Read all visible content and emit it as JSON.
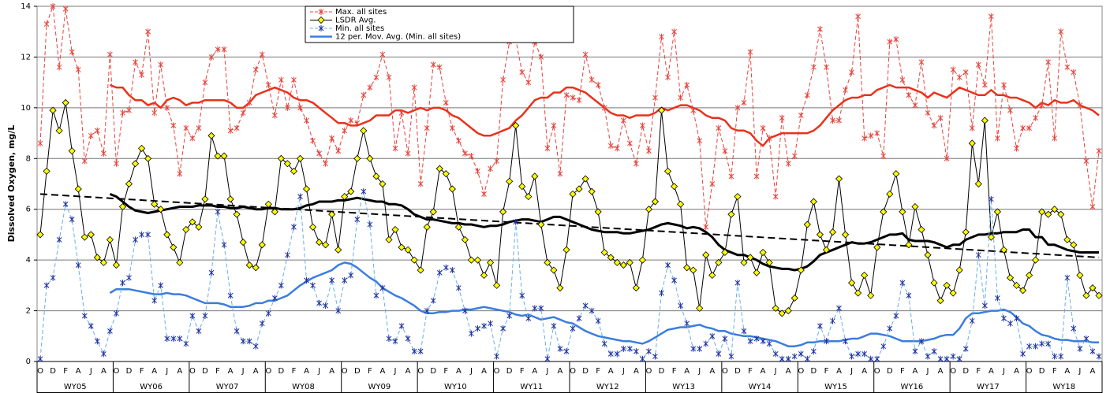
{
  "chart_data": {
    "type": "line",
    "ylabel": "Dissolved Oxygen, mg/L",
    "ylim": [
      0,
      14
    ],
    "yticks": [
      0,
      2,
      4,
      6,
      8,
      10,
      12,
      14
    ],
    "grid": true,
    "legend": "top-center",
    "categories": [
      "O",
      null,
      "D",
      null,
      "F",
      null,
      "A",
      null,
      "J",
      null,
      "A",
      null,
      "O",
      null,
      "D",
      null,
      "F",
      null,
      "A",
      null,
      "J",
      null,
      "A",
      null,
      "O",
      null,
      "D",
      null,
      "F",
      null,
      "A",
      null,
      "J",
      null,
      "A",
      null,
      "O",
      null,
      "D",
      null,
      "F",
      null,
      "A",
      null,
      "J",
      null,
      "A",
      null,
      "O",
      null,
      "D",
      null,
      "F",
      null,
      "A",
      null,
      "J",
      null,
      "A",
      null,
      "O",
      null,
      "D",
      null,
      "F",
      null,
      "A",
      null,
      "J",
      null,
      "A",
      null,
      "O",
      null,
      "D",
      null,
      "F",
      null,
      "A",
      null,
      "J",
      null,
      "A",
      null,
      "O",
      null,
      "D",
      null,
      "F",
      null,
      "A",
      null,
      "J",
      null,
      "A",
      null,
      "O",
      null,
      "D",
      null,
      "F",
      null,
      "A",
      null,
      "J",
      null,
      "A",
      null,
      "O",
      null,
      "D",
      null,
      "F",
      null,
      "A",
      null,
      "J",
      null,
      "A",
      null,
      "O",
      null,
      "D",
      null,
      "F",
      null,
      "A",
      null,
      "J",
      null,
      "A",
      null,
      "O",
      null,
      "D",
      null,
      "F",
      null,
      "A",
      null,
      "J",
      null,
      "A",
      null,
      "O",
      null,
      "D",
      null,
      "F",
      null,
      "A",
      null,
      "J",
      null,
      "A",
      null,
      "O",
      null,
      "D",
      null,
      "F",
      null,
      "A",
      null,
      "J",
      null,
      "A",
      null
    ],
    "year_groups": [
      "WY05",
      "WY06",
      "WY07",
      "WY08",
      "WY09",
      "WY10",
      "WY11",
      "WY12",
      "WY13",
      "WY14",
      "WY15",
      "WY16",
      "WY17",
      "WY18"
    ],
    "series": [
      {
        "name": "Max. all sites",
        "color": "#e8413a",
        "dash": true,
        "marker": "star",
        "marker_color": "#e8413a",
        "width": 1,
        "values": [
          8.6,
          13.3,
          14.0,
          11.6,
          13.9,
          12.2,
          11.5,
          7.9,
          8.9,
          9.1,
          8.2,
          12.1,
          7.8,
          9.8,
          9.9,
          11.8,
          11.3,
          13.0,
          9.8,
          11.7,
          10.0,
          9.3,
          7.4,
          9.2,
          8.8,
          9.2,
          11.0,
          12.0,
          12.3,
          12.3,
          9.1,
          9.2,
          9.8,
          10.2,
          11.5,
          12.1,
          10.9,
          9.7,
          11.1,
          10.0,
          11.1,
          10.0,
          9.5,
          8.7,
          8.2,
          7.8,
          8.8,
          8.3,
          9.1,
          9.5,
          9.4,
          10.5,
          10.8,
          11.2,
          12.1,
          11.2,
          8.4,
          9.8,
          8.2,
          10.8,
          7.0,
          9.2,
          11.7,
          11.6,
          10.2,
          9.2,
          8.7,
          8.2,
          8.1,
          7.5,
          6.6,
          7.6,
          7.9,
          11.1,
          12.6,
          12.7,
          11.4,
          11.0,
          12.6,
          12.0,
          8.4,
          9.3,
          7.4,
          10.5,
          10.4,
          10.3,
          12.1,
          11.1,
          10.9,
          10.0,
          8.5,
          8.4,
          9.5,
          8.6,
          7.8,
          9.3,
          8.3,
          10.4,
          12.8,
          11.2,
          13.0,
          10.4,
          10.9,
          9.9,
          8.7,
          5.3,
          7.0,
          9.2,
          8.3,
          7.3,
          10.0,
          10.2,
          12.2,
          7.3,
          9.2,
          8.8,
          6.5,
          9.6,
          7.8,
          8.1,
          9.7,
          10.5,
          11.6,
          13.1,
          11.6,
          9.5,
          9.5,
          10.7,
          11.4,
          13.6,
          8.8,
          8.9,
          9.0,
          8.1,
          12.6,
          12.7,
          11.1,
          10.5,
          10.1,
          11.8,
          9.8,
          9.3,
          9.6,
          8.0,
          11.5,
          11.2,
          11.4,
          9.2,
          11.7,
          10.9,
          13.6,
          8.8,
          10.9,
          9.9,
          8.4,
          9.2,
          9.2,
          9.6,
          10.1,
          11.8,
          8.8,
          13.0,
          11.6,
          11.4,
          10.1,
          7.9,
          6.1,
          8.3
        ]
      },
      {
        "name": "LSDR Avg.",
        "color": "#000000",
        "dash": false,
        "marker": "diamond",
        "marker_color": "#ffff00",
        "width": 1,
        "values": [
          5.0,
          7.5,
          9.9,
          9.1,
          10.2,
          8.3,
          6.8,
          4.9,
          5.0,
          4.1,
          3.9,
          4.8,
          3.8,
          6.1,
          7.0,
          7.8,
          8.4,
          8.0,
          6.2,
          6.0,
          5.0,
          4.5,
          3.9,
          5.2,
          5.5,
          5.3,
          6.4,
          8.9,
          8.1,
          8.1,
          6.4,
          5.8,
          4.7,
          3.8,
          3.7,
          4.6,
          6.2,
          5.9,
          8.0,
          7.8,
          7.5,
          8.0,
          6.8,
          5.3,
          4.7,
          4.6,
          5.8,
          4.4,
          6.5,
          6.7,
          8.0,
          9.1,
          8.0,
          7.3,
          7.0,
          4.8,
          5.2,
          4.5,
          4.4,
          4.0,
          3.6,
          5.3,
          5.9,
          7.6,
          7.4,
          6.8,
          5.3,
          4.8,
          4.0,
          4.0,
          3.4,
          3.9,
          3.0,
          5.9,
          7.1,
          9.3,
          6.9,
          6.5,
          7.3,
          5.4,
          3.9,
          3.6,
          2.9,
          4.4,
          6.6,
          6.8,
          7.2,
          6.7,
          5.9,
          4.3,
          4.1,
          3.9,
          3.8,
          3.9,
          2.9,
          4.0,
          6.0,
          6.3,
          9.9,
          7.5,
          6.9,
          6.2,
          3.7,
          3.6,
          2.1,
          4.2,
          3.4,
          3.9,
          4.3,
          5.8,
          6.5,
          3.9,
          4.1,
          3.5,
          4.3,
          3.9,
          2.1,
          1.9,
          2.0,
          2.5,
          3.6,
          5.4,
          6.3,
          5.0,
          4.4,
          5.1,
          7.2,
          5.0,
          3.1,
          2.7,
          3.4,
          2.6,
          4.5,
          5.9,
          6.6,
          7.4,
          5.9,
          4.6,
          6.1,
          5.2,
          4.2,
          3.1,
          2.4,
          3.0,
          2.7,
          3.6,
          5.1,
          8.6,
          7.0,
          9.5,
          4.9,
          5.9,
          4.4,
          3.3,
          3.0,
          2.8,
          3.4,
          4.0,
          5.9,
          5.8,
          6.0,
          5.8,
          4.8,
          4.6,
          3.4,
          2.6,
          2.9,
          2.6
        ]
      },
      {
        "name": "Min. all sites",
        "color": "#6aaee8",
        "dash": true,
        "marker": "star",
        "marker_color": "#1f2f9f",
        "width": 1,
        "values": [
          0.1,
          3.0,
          3.3,
          4.8,
          6.2,
          5.6,
          3.8,
          1.8,
          1.4,
          0.8,
          0.3,
          1.2,
          1.9,
          3.1,
          3.3,
          4.8,
          5.0,
          5.0,
          2.4,
          3.0,
          0.9,
          0.9,
          0.9,
          0.7,
          1.8,
          1.2,
          1.8,
          3.5,
          5.9,
          4.6,
          2.6,
          1.2,
          0.8,
          0.8,
          0.6,
          1.5,
          1.9,
          2.5,
          3.0,
          4.2,
          5.3,
          6.5,
          3.2,
          3.0,
          2.3,
          2.2,
          3.2,
          2.0,
          3.2,
          3.4,
          5.6,
          6.7,
          5.4,
          2.6,
          2.9,
          0.9,
          0.8,
          1.4,
          0.9,
          0.4,
          0.4,
          2.0,
          2.4,
          3.5,
          3.7,
          3.6,
          2.9,
          2.0,
          1.1,
          1.3,
          1.4,
          1.5,
          0.2,
          1.3,
          1.8,
          5.5,
          2.6,
          1.7,
          2.1,
          2.1,
          0.1,
          1.4,
          0.5,
          0.4,
          1.3,
          1.7,
          2.2,
          2.0,
          1.6,
          0.7,
          0.3,
          0.3,
          0.5,
          0.5,
          0.4,
          0.1,
          0.4,
          0.2,
          2.7,
          3.8,
          3.2,
          2.2,
          1.5,
          0.5,
          0.5,
          0.7,
          1.0,
          0.3,
          0.9,
          0.2,
          3.1,
          1.2,
          0.8,
          0.9,
          0.8,
          0.7,
          0.3,
          0.1,
          0.1,
          0.2,
          0.3,
          0.1,
          0.4,
          1.4,
          0.8,
          1.6,
          2.1,
          0.8,
          0.2,
          0.3,
          0.3,
          0.1,
          0.1,
          0.6,
          1.3,
          1.8,
          3.1,
          2.6,
          0.4,
          0.8,
          0.2,
          0.4,
          0.1,
          0.1,
          0.2,
          0.1,
          0.5,
          1.6,
          4.2,
          2.2,
          6.4,
          2.5,
          1.7,
          1.5,
          1.7,
          0.3,
          0.6,
          0.6,
          0.7,
          0.7,
          0.2,
          0.2,
          3.3,
          1.3,
          0.5,
          0.9,
          0.4,
          0.2
        ]
      },
      {
        "name": "12 per. Mov. Avg. (Min. all sites)",
        "color": "#3a7de0",
        "dash": false,
        "width": 2.5,
        "values": [
          null,
          null,
          null,
          null,
          null,
          null,
          null,
          null,
          null,
          null,
          null,
          2.7,
          2.85,
          2.85,
          2.85,
          2.8,
          2.75,
          2.7,
          2.65,
          2.65,
          2.7,
          2.65,
          2.65,
          2.6,
          2.5,
          2.4,
          2.3,
          2.3,
          2.3,
          2.25,
          2.15,
          2.15,
          2.15,
          2.2,
          2.3,
          2.3,
          2.4,
          2.4,
          2.5,
          2.6,
          2.8,
          3.0,
          3.15,
          3.3,
          3.4,
          3.5,
          3.6,
          3.8,
          3.9,
          3.85,
          3.7,
          3.5,
          3.3,
          3.15,
          2.9,
          2.75,
          2.6,
          2.5,
          2.35,
          2.2,
          2.0,
          1.9,
          1.9,
          1.95,
          1.95,
          2.0,
          2.0,
          2.05,
          2.05,
          2.1,
          2.15,
          2.1,
          2.05,
          2.0,
          1.95,
          1.85,
          1.8,
          1.85,
          1.75,
          1.65,
          1.7,
          1.75,
          1.65,
          1.55,
          1.5,
          1.35,
          1.2,
          1.1,
          1.0,
          0.95,
          0.9,
          0.85,
          0.8,
          0.8,
          0.75,
          0.7,
          0.8,
          0.95,
          1.1,
          1.25,
          1.3,
          1.35,
          1.35,
          1.4,
          1.45,
          1.35,
          1.3,
          1.2,
          1.2,
          1.1,
          1.05,
          1.0,
          1.0,
          0.95,
          0.9,
          0.85,
          0.8,
          0.7,
          0.6,
          0.6,
          0.65,
          0.75,
          0.75,
          0.8,
          0.8,
          0.8,
          0.8,
          0.85,
          0.9,
          0.9,
          1.0,
          1.1,
          1.1,
          1.05,
          1.0,
          0.9,
          0.8,
          0.8,
          0.8,
          0.8,
          0.85,
          0.9,
          1.0,
          1.05,
          1.05,
          1.3,
          1.7,
          1.9,
          1.9,
          1.95,
          2.0,
          2.0,
          2.05,
          1.95,
          1.75,
          1.5,
          1.4,
          1.2,
          1.05,
          1.0,
          0.9,
          0.85,
          0.85,
          0.8,
          0.8,
          0.8,
          0.75,
          0.75
        ]
      },
      {
        "color": "#e8321a",
        "dash": false,
        "width": 2.5,
        "values": [
          null,
          null,
          null,
          null,
          null,
          null,
          null,
          null,
          null,
          null,
          null,
          10.9,
          10.8,
          10.8,
          10.5,
          10.3,
          10.3,
          10.1,
          10.2,
          10.0,
          10.3,
          10.4,
          10.3,
          10.1,
          10.2,
          10.2,
          10.3,
          10.3,
          10.3,
          10.3,
          10.2,
          10.0,
          10.0,
          10.2,
          10.5,
          10.6,
          10.7,
          10.8,
          10.7,
          10.6,
          10.4,
          10.3,
          10.3,
          10.2,
          10.0,
          9.8,
          9.6,
          9.4,
          9.4,
          9.3,
          9.3,
          9.4,
          9.5,
          9.7,
          9.7,
          9.7,
          9.9,
          9.9,
          9.8,
          9.9,
          10.0,
          9.9,
          10.0,
          10.0,
          9.9,
          9.7,
          9.6,
          9.4,
          9.2,
          9.0,
          8.9,
          8.9,
          9.0,
          9.1,
          9.2,
          9.5,
          9.7,
          10.0,
          10.3,
          10.4,
          10.4,
          10.6,
          10.6,
          10.8,
          10.8,
          10.7,
          10.6,
          10.4,
          10.2,
          10.0,
          9.8,
          9.7,
          9.7,
          9.6,
          9.7,
          9.7,
          9.7,
          9.8,
          10.0,
          9.9,
          10.0,
          10.1,
          10.1,
          10.0,
          9.9,
          9.7,
          9.6,
          9.6,
          9.5,
          9.2,
          9.1,
          9.1,
          9.0,
          8.7,
          8.5,
          8.8,
          8.9,
          9.0,
          9.0,
          9.0,
          9.0,
          9.0,
          9.1,
          9.3,
          9.6,
          9.9,
          10.1,
          10.3,
          10.4,
          10.4,
          10.5,
          10.5,
          10.7,
          10.8,
          10.9,
          10.8,
          10.8,
          10.8,
          10.7,
          10.6,
          10.4,
          10.6,
          10.5,
          10.4,
          10.6,
          10.8,
          10.7,
          10.6,
          10.5,
          10.5,
          10.7,
          10.5,
          10.5,
          10.4,
          10.4,
          10.3,
          10.2,
          10.0,
          10.2,
          10.1,
          10.3,
          10.2,
          10.2,
          10.3,
          10.1,
          10.0,
          9.9,
          9.7
        ]
      },
      {
        "color": "#000000",
        "dash": false,
        "width": 3,
        "values": [
          null,
          null,
          null,
          null,
          null,
          null,
          null,
          null,
          null,
          null,
          null,
          6.6,
          6.5,
          6.3,
          6.1,
          5.95,
          5.9,
          5.85,
          5.9,
          5.95,
          6.0,
          6.05,
          6.1,
          6.1,
          6.1,
          6.15,
          6.15,
          6.15,
          6.1,
          6.1,
          6.05,
          6.05,
          6.1,
          6.05,
          6.0,
          6.0,
          6.05,
          6.05,
          6.0,
          6.0,
          6.0,
          6.05,
          6.15,
          6.2,
          6.3,
          6.3,
          6.3,
          6.35,
          6.35,
          6.4,
          6.45,
          6.4,
          6.35,
          6.3,
          6.3,
          6.2,
          6.2,
          6.15,
          6.0,
          5.8,
          5.7,
          5.6,
          5.6,
          5.55,
          5.5,
          5.45,
          5.45,
          5.4,
          5.4,
          5.35,
          5.3,
          5.35,
          5.35,
          5.4,
          5.5,
          5.55,
          5.6,
          5.6,
          5.55,
          5.5,
          5.6,
          5.7,
          5.7,
          5.6,
          5.5,
          5.4,
          5.3,
          5.2,
          5.15,
          5.1,
          5.1,
          5.1,
          5.05,
          5.05,
          5.1,
          5.15,
          5.2,
          5.3,
          5.4,
          5.45,
          5.4,
          5.35,
          5.25,
          5.3,
          5.25,
          5.1,
          4.9,
          4.6,
          4.4,
          4.3,
          4.2,
          4.2,
          4.1,
          4.0,
          3.85,
          3.75,
          3.7,
          3.65,
          3.65,
          3.6,
          3.65,
          3.75,
          3.95,
          4.2,
          4.3,
          4.4,
          4.5,
          4.6,
          4.7,
          4.65,
          4.65,
          4.7,
          4.8,
          4.9,
          5.0,
          5.0,
          5.05,
          4.8,
          4.75,
          4.75,
          4.75,
          4.7,
          4.6,
          4.5,
          4.6,
          4.6,
          4.8,
          4.9,
          5.0,
          5.0,
          5.05,
          5.05,
          5.1,
          5.1,
          5.1,
          5.2,
          5.2,
          4.9,
          4.9,
          4.6,
          4.6,
          4.5,
          4.4,
          4.35,
          4.3,
          4.3,
          4.3,
          4.3
        ]
      }
    ],
    "trend": {
      "color": "#000000",
      "dash": true,
      "start": 6.6,
      "end": 4.1
    }
  }
}
